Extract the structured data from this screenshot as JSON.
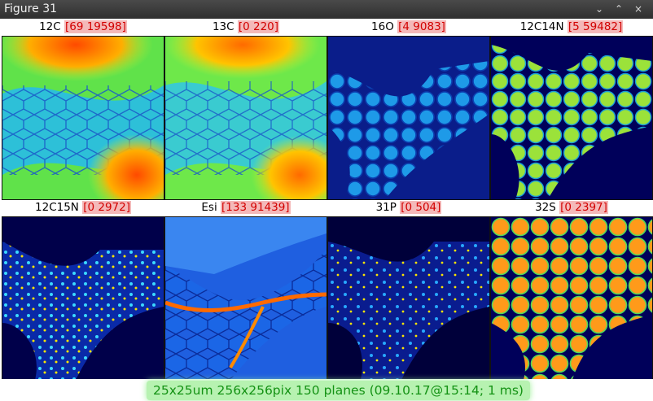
{
  "window": {
    "title": "Figure 31",
    "controls": {
      "menu": "⌄",
      "minimize": "⌃",
      "close": "×"
    }
  },
  "panels": [
    {
      "name": "12C",
      "range": "[69 19598]"
    },
    {
      "name": "13C",
      "range": "[0 220]"
    },
    {
      "name": "16O",
      "range": "[4 9083]"
    },
    {
      "name": "12C14N",
      "range": "[5 59482]"
    },
    {
      "name": "12C15N",
      "range": "[0 2972]"
    },
    {
      "name": "Esi",
      "range": "[133 91439]"
    },
    {
      "name": "31P",
      "range": "[0 504]"
    },
    {
      "name": "32S",
      "range": "[0 2397]"
    }
  ],
  "footer": {
    "info": "25x25um 256x256pix 150 planes (09.10.17@15:14; 1 ms)"
  },
  "colors": {
    "colormap_low": "#00007f",
    "colormap_mid": "#00c8ff",
    "colormap_green": "#4fe64a",
    "colormap_high": "#ff3a00",
    "range_text": "#d20000",
    "range_bg": "#f4b9b9",
    "footer_text": "#149214",
    "footer_bg": "#b7f2b1"
  }
}
